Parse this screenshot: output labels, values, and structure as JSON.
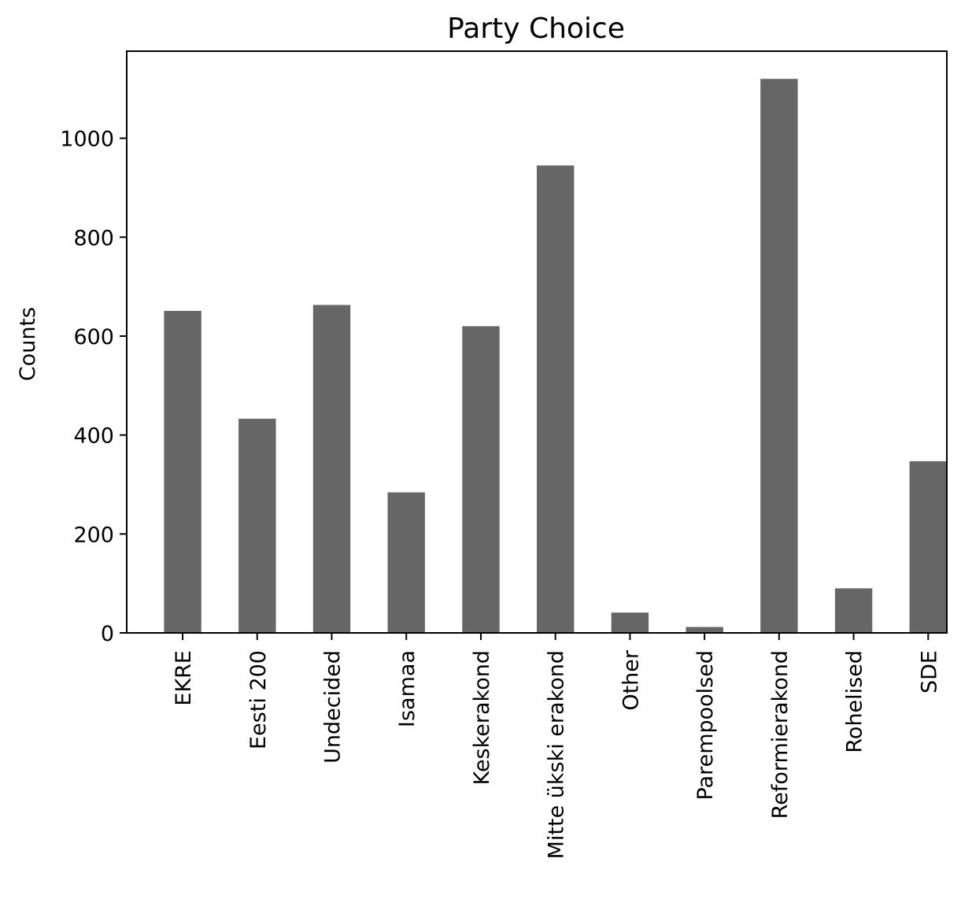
{
  "chart_data": {
    "type": "bar",
    "title": "Party Choice",
    "xlabel": "",
    "ylabel": "Counts",
    "categories": [
      "EKRE",
      "Eesti 200",
      "Undecided",
      "Isamaa",
      "Keskerakond",
      "Mitte ükski erakond",
      "Other",
      "Parempoolsed",
      "Reformierakond",
      "Rohelised",
      "SDE"
    ],
    "values": [
      651,
      433,
      663,
      284,
      620,
      945,
      41,
      12,
      1120,
      90,
      347
    ],
    "yticks": [
      0,
      200,
      400,
      600,
      800,
      1000
    ],
    "ylim": [
      0,
      1176
    ],
    "grid": false,
    "bar_color": "#666666"
  }
}
